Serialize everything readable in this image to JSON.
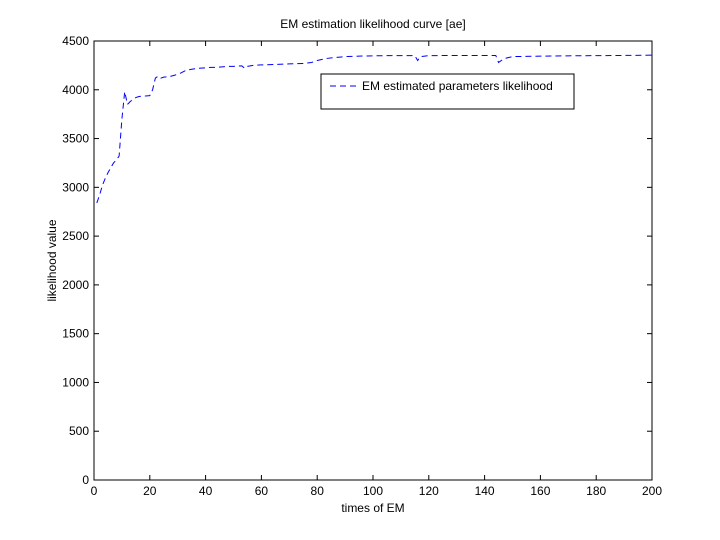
{
  "chart_data": {
    "type": "line",
    "title": "EM estimation likelihood curve [ae]",
    "xlabel": "times of EM",
    "ylabel": "likelihood value",
    "xlim": [
      0,
      200
    ],
    "ylim": [
      0,
      4500
    ],
    "xticks": [
      0,
      20,
      40,
      60,
      80,
      100,
      120,
      140,
      160,
      180,
      200
    ],
    "yticks": [
      0,
      500,
      1000,
      1500,
      2000,
      2500,
      3000,
      3500,
      4000,
      4500
    ],
    "grid": false,
    "legend_position": "top-right",
    "series": [
      {
        "name": "EM estimated parameters likelihood",
        "color": "#0000ff",
        "style": "dashed",
        "points": [
          [
            1,
            2840
          ],
          [
            2,
            2920
          ],
          [
            3,
            3020
          ],
          [
            4,
            3090
          ],
          [
            5,
            3150
          ],
          [
            6,
            3200
          ],
          [
            7,
            3250
          ],
          [
            8,
            3280
          ],
          [
            9,
            3320
          ],
          [
            10,
            3700
          ],
          [
            11,
            3980
          ],
          [
            12,
            3850
          ],
          [
            13,
            3880
          ],
          [
            14,
            3900
          ],
          [
            15,
            3920
          ],
          [
            16,
            3930
          ],
          [
            17,
            3935
          ],
          [
            18,
            3935
          ],
          [
            19,
            3938
          ],
          [
            20,
            3940
          ],
          [
            21,
            4000
          ],
          [
            22,
            4120
          ],
          [
            23,
            4140
          ],
          [
            24,
            4120
          ],
          [
            25,
            4130
          ],
          [
            27,
            4135
          ],
          [
            29,
            4150
          ],
          [
            31,
            4170
          ],
          [
            33,
            4200
          ],
          [
            35,
            4210
          ],
          [
            37,
            4220
          ],
          [
            40,
            4225
          ],
          [
            42,
            4230
          ],
          [
            44,
            4230
          ],
          [
            46,
            4235
          ],
          [
            48,
            4240
          ],
          [
            50,
            4240
          ],
          [
            53,
            4245
          ],
          [
            54,
            4220
          ],
          [
            55,
            4240
          ],
          [
            57,
            4250
          ],
          [
            60,
            4255
          ],
          [
            65,
            4260
          ],
          [
            70,
            4265
          ],
          [
            75,
            4270
          ],
          [
            78,
            4280
          ],
          [
            80,
            4300
          ],
          [
            83,
            4320
          ],
          [
            86,
            4330
          ],
          [
            90,
            4340
          ],
          [
            95,
            4345
          ],
          [
            100,
            4348
          ],
          [
            105,
            4350
          ],
          [
            110,
            4350
          ],
          [
            115,
            4350
          ],
          [
            116,
            4300
          ],
          [
            117,
            4340
          ],
          [
            120,
            4350
          ],
          [
            130,
            4352
          ],
          [
            140,
            4352
          ],
          [
            144,
            4352
          ],
          [
            145,
            4280
          ],
          [
            146,
            4300
          ],
          [
            147,
            4320
          ],
          [
            150,
            4340
          ],
          [
            160,
            4345
          ],
          [
            170,
            4348
          ],
          [
            180,
            4350
          ],
          [
            190,
            4352
          ],
          [
            200,
            4355
          ]
        ]
      },
      {
        "name": "",
        "color": "#cc0000",
        "style": "dashed",
        "points": [
          [
            0,
            0
          ],
          [
            200,
            0
          ]
        ]
      }
    ]
  }
}
